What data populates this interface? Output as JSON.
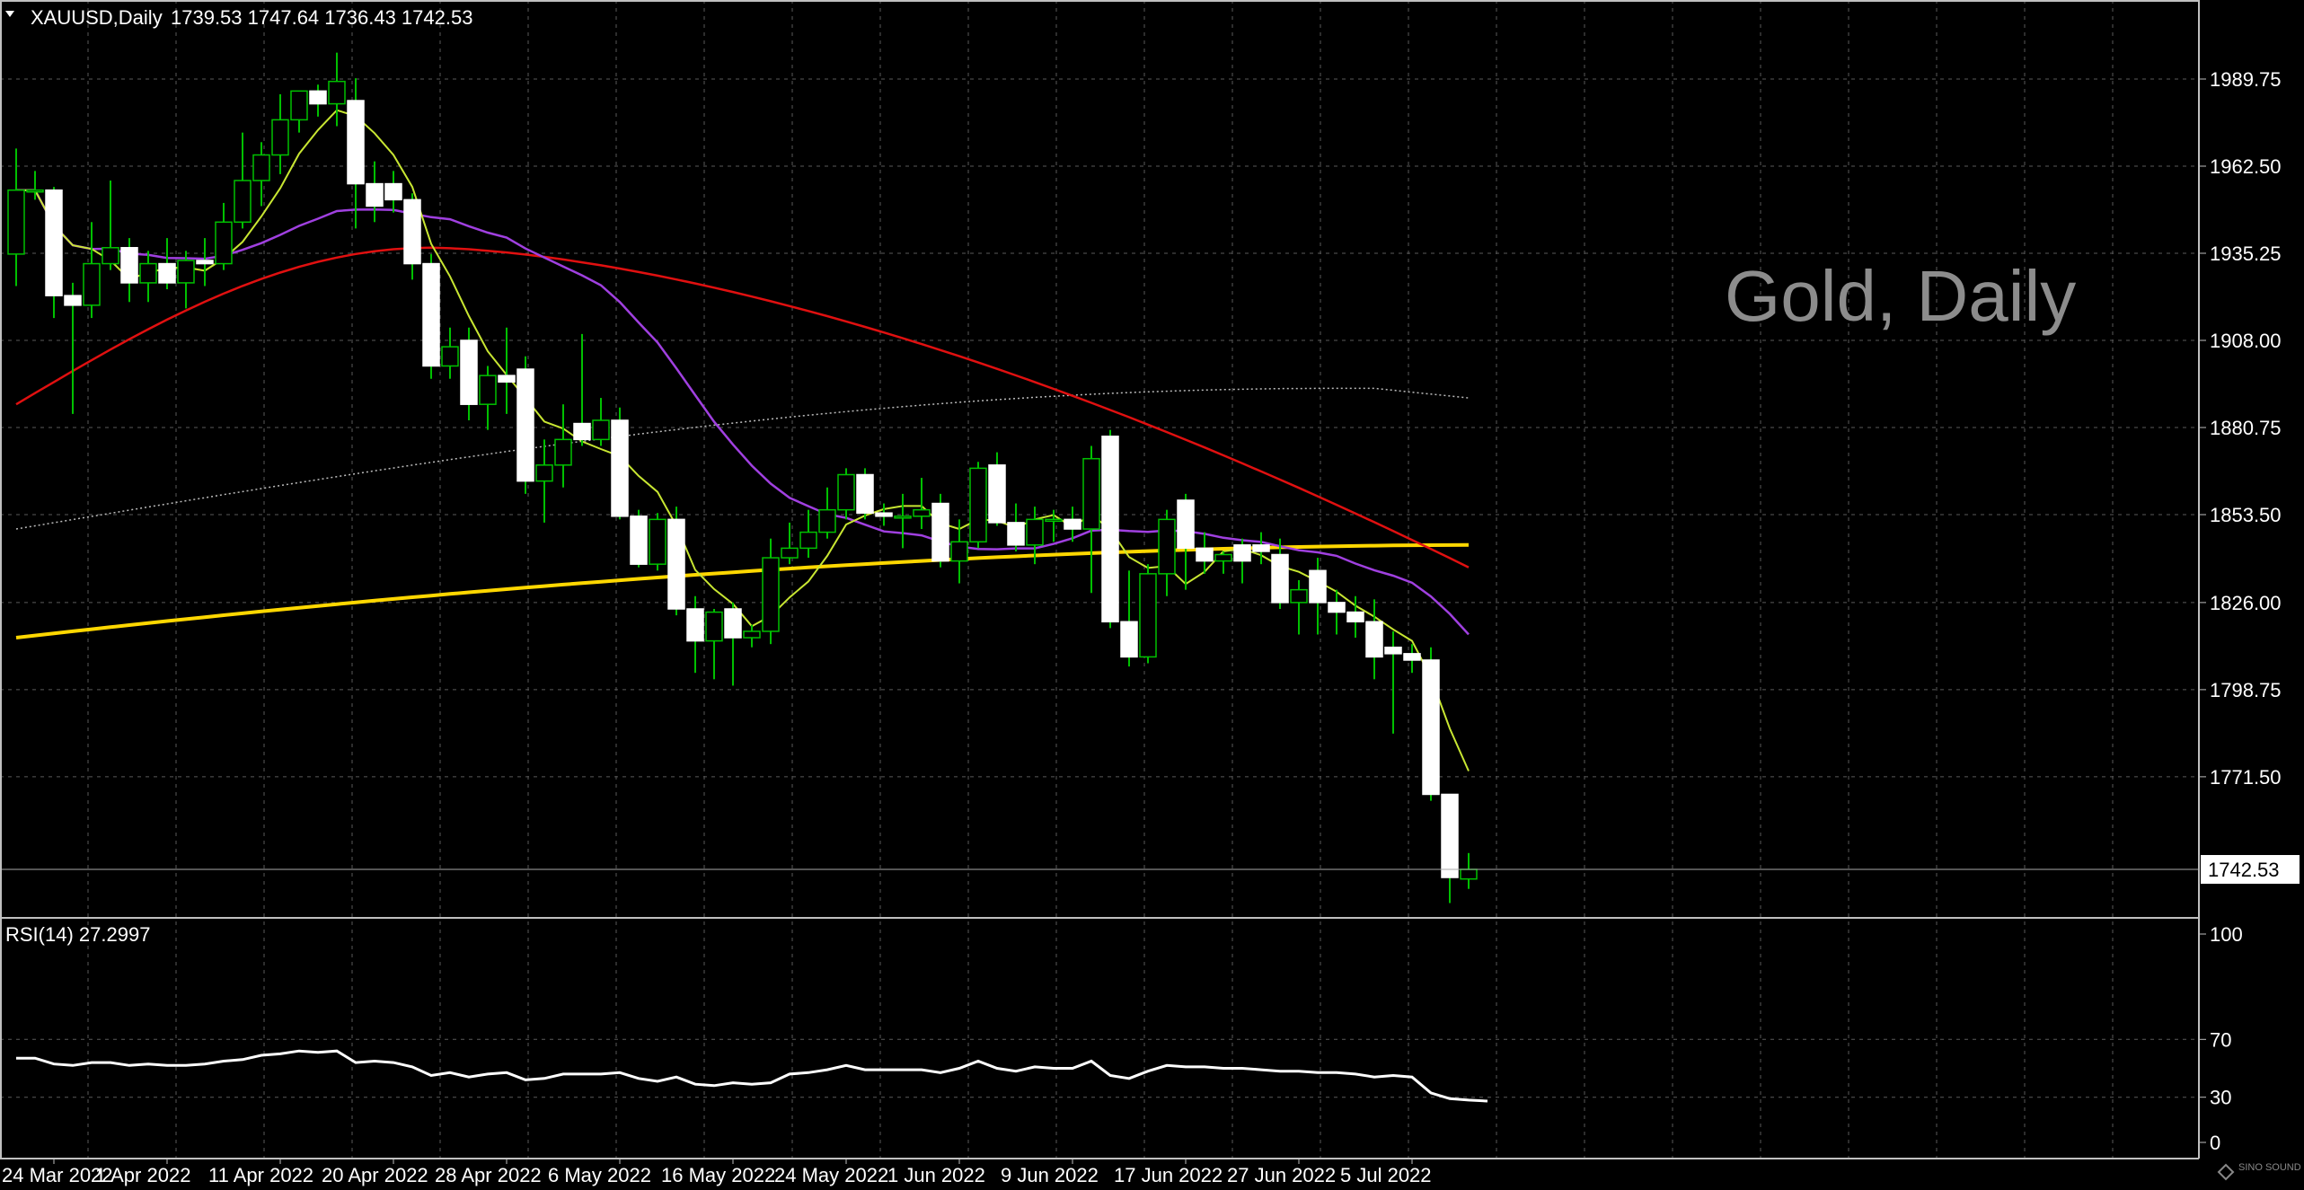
{
  "header": {
    "symbol": "XAUUSD,Daily",
    "ohlc": "1739.53 1747.64 1736.43 1742.53",
    "watermark": "Gold, Daily"
  },
  "price_panel": {
    "ticks": [
      "1989.75",
      "1962.50",
      "1935.25",
      "1908.00",
      "1880.75",
      "1853.50",
      "1826.00",
      "1798.75",
      "1771.50"
    ],
    "current_price": "1742.53"
  },
  "rsi_panel": {
    "label": "RSI(14) 27.2997",
    "ticks": [
      "100",
      "70",
      "30",
      "0"
    ]
  },
  "date_labels": [
    "24 Mar 2022",
    "1 Apr 2022",
    "11 Apr 2022",
    "20 Apr 2022",
    "28 Apr 2022",
    "6 May 2022",
    "16 May 2022",
    "24 May 2022",
    "1 Jun 2022",
    "9 Jun 2022",
    "17 Jun 2022",
    "27 Jun 2022",
    "5 Jul 2022"
  ],
  "logo": "SINO SOUND",
  "colors": {
    "background": "#000000",
    "candle_up": "#000000",
    "candle_down": "#ffffff",
    "wick": "#00c000",
    "ma_fast": "#c8e632",
    "ma_mid": "#a040e0",
    "ma_slow": "#e01010",
    "ma_200": "#ffd700",
    "ma_long_dotted": "#bbbbbb",
    "rsi": "#ffffff"
  },
  "chart_data": [
    {
      "type": "candlestick",
      "title": "XAUUSD,Daily",
      "ylim": [
        1719,
        2015
      ],
      "candles": [
        {
          "o": 1935,
          "h": 1968,
          "l": 1925,
          "c": 1955
        },
        {
          "o": 1955,
          "h": 1961,
          "l": 1952,
          "c": 1955
        },
        {
          "o": 1955,
          "h": 1956,
          "l": 1915,
          "c": 1922
        },
        {
          "o": 1922,
          "h": 1926,
          "l": 1885,
          "c": 1919
        },
        {
          "o": 1919,
          "h": 1945,
          "l": 1915,
          "c": 1932
        },
        {
          "o": 1932,
          "h": 1958,
          "l": 1930,
          "c": 1937
        },
        {
          "o": 1937,
          "h": 1940,
          "l": 1920,
          "c": 1926
        },
        {
          "o": 1926,
          "h": 1936,
          "l": 1920,
          "c": 1932
        },
        {
          "o": 1932,
          "h": 1940,
          "l": 1924,
          "c": 1926
        },
        {
          "o": 1926,
          "h": 1936,
          "l": 1918,
          "c": 1933
        },
        {
          "o": 1933,
          "h": 1940,
          "l": 1925,
          "c": 1932
        },
        {
          "o": 1932,
          "h": 1951,
          "l": 1930,
          "c": 1945
        },
        {
          "o": 1945,
          "h": 1973,
          "l": 1943,
          "c": 1958
        },
        {
          "o": 1958,
          "h": 1970,
          "l": 1950,
          "c": 1966
        },
        {
          "o": 1966,
          "h": 1985,
          "l": 1960,
          "c": 1977
        },
        {
          "o": 1977,
          "h": 1986,
          "l": 1973,
          "c": 1986
        },
        {
          "o": 1986,
          "h": 1988,
          "l": 1978,
          "c": 1982
        },
        {
          "o": 1982,
          "h": 1998,
          "l": 1975,
          "c": 1989
        },
        {
          "o": 1983,
          "h": 1990,
          "l": 1943,
          "c": 1957
        },
        {
          "o": 1957,
          "h": 1964,
          "l": 1945,
          "c": 1950
        },
        {
          "o": 1957,
          "h": 1961,
          "l": 1948,
          "c": 1952
        },
        {
          "o": 1952,
          "h": 1954,
          "l": 1927,
          "c": 1932
        },
        {
          "o": 1932,
          "h": 1935,
          "l": 1896,
          "c": 1900
        },
        {
          "o": 1900,
          "h": 1912,
          "l": 1896,
          "c": 1906
        },
        {
          "o": 1908,
          "h": 1912,
          "l": 1883,
          "c": 1888
        },
        {
          "o": 1888,
          "h": 1900,
          "l": 1880,
          "c": 1897
        },
        {
          "o": 1897,
          "h": 1912,
          "l": 1885,
          "c": 1895
        },
        {
          "o": 1899,
          "h": 1903,
          "l": 1860,
          "c": 1864
        },
        {
          "o": 1864,
          "h": 1877,
          "l": 1851,
          "c": 1869
        },
        {
          "o": 1869,
          "h": 1888,
          "l": 1862,
          "c": 1877
        },
        {
          "o": 1882,
          "h": 1910,
          "l": 1875,
          "c": 1877
        },
        {
          "o": 1877,
          "h": 1890,
          "l": 1875,
          "c": 1883
        },
        {
          "o": 1883,
          "h": 1887,
          "l": 1852,
          "c": 1853
        },
        {
          "o": 1853,
          "h": 1855,
          "l": 1837,
          "c": 1838
        },
        {
          "o": 1838,
          "h": 1854,
          "l": 1836,
          "c": 1852
        },
        {
          "o": 1852,
          "h": 1856,
          "l": 1822,
          "c": 1824
        },
        {
          "o": 1824,
          "h": 1828,
          "l": 1804,
          "c": 1814
        },
        {
          "o": 1814,
          "h": 1824,
          "l": 1802,
          "c": 1823
        },
        {
          "o": 1824,
          "h": 1826,
          "l": 1800,
          "c": 1815
        },
        {
          "o": 1815,
          "h": 1819,
          "l": 1812,
          "c": 1817
        },
        {
          "o": 1817,
          "h": 1846,
          "l": 1813,
          "c": 1840
        },
        {
          "o": 1840,
          "h": 1851,
          "l": 1838,
          "c": 1843
        },
        {
          "o": 1843,
          "h": 1855,
          "l": 1840,
          "c": 1848
        },
        {
          "o": 1848,
          "h": 1862,
          "l": 1846,
          "c": 1855
        },
        {
          "o": 1855,
          "h": 1868,
          "l": 1852,
          "c": 1866
        },
        {
          "o": 1866,
          "h": 1868,
          "l": 1852,
          "c": 1854
        },
        {
          "o": 1854,
          "h": 1857,
          "l": 1850,
          "c": 1853
        },
        {
          "o": 1853,
          "h": 1860,
          "l": 1843,
          "c": 1853
        },
        {
          "o": 1853,
          "h": 1865,
          "l": 1849,
          "c": 1855
        },
        {
          "o": 1857,
          "h": 1860,
          "l": 1837,
          "c": 1839
        },
        {
          "o": 1839,
          "h": 1852,
          "l": 1832,
          "c": 1845
        },
        {
          "o": 1845,
          "h": 1870,
          "l": 1843,
          "c": 1868
        },
        {
          "o": 1869,
          "h": 1873,
          "l": 1850,
          "c": 1851
        },
        {
          "o": 1851,
          "h": 1857,
          "l": 1842,
          "c": 1844
        },
        {
          "o": 1844,
          "h": 1856,
          "l": 1838,
          "c": 1852
        },
        {
          "o": 1852,
          "h": 1855,
          "l": 1845,
          "c": 1852
        },
        {
          "o": 1852,
          "h": 1856,
          "l": 1845,
          "c": 1849
        },
        {
          "o": 1849,
          "h": 1875,
          "l": 1829,
          "c": 1871
        },
        {
          "o": 1878,
          "h": 1880,
          "l": 1818,
          "c": 1820
        },
        {
          "o": 1820,
          "h": 1836,
          "l": 1806,
          "c": 1809
        },
        {
          "o": 1809,
          "h": 1838,
          "l": 1807,
          "c": 1835
        },
        {
          "o": 1835,
          "h": 1855,
          "l": 1828,
          "c": 1852
        },
        {
          "o": 1858,
          "h": 1860,
          "l": 1830,
          "c": 1843
        },
        {
          "o": 1843,
          "h": 1848,
          "l": 1835,
          "c": 1839
        },
        {
          "o": 1839,
          "h": 1842,
          "l": 1835,
          "c": 1841
        },
        {
          "o": 1844,
          "h": 1846,
          "l": 1832,
          "c": 1839
        },
        {
          "o": 1844,
          "h": 1848,
          "l": 1838,
          "c": 1842
        },
        {
          "o": 1841,
          "h": 1846,
          "l": 1824,
          "c": 1826
        },
        {
          "o": 1826,
          "h": 1833,
          "l": 1816,
          "c": 1830
        },
        {
          "o": 1836,
          "h": 1840,
          "l": 1816,
          "c": 1826
        },
        {
          "o": 1826,
          "h": 1830,
          "l": 1816,
          "c": 1823
        },
        {
          "o": 1823,
          "h": 1828,
          "l": 1815,
          "c": 1820
        },
        {
          "o": 1820,
          "h": 1827,
          "l": 1802,
          "c": 1809
        },
        {
          "o": 1812,
          "h": 1817,
          "l": 1785,
          "c": 1810
        },
        {
          "o": 1810,
          "h": 1813,
          "l": 1804,
          "c": 1808
        },
        {
          "o": 1808,
          "h": 1812,
          "l": 1764,
          "c": 1766
        },
        {
          "o": 1766,
          "h": 1766,
          "l": 1732,
          "c": 1740
        },
        {
          "o": 1739.53,
          "h": 1747.64,
          "l": 1736.43,
          "c": 1742.53
        }
      ]
    },
    {
      "type": "line",
      "title": "RSI(14) 27.2997",
      "ylim": [
        0,
        100
      ],
      "values": [
        57,
        57,
        53,
        52,
        54,
        54,
        52,
        53,
        52,
        52,
        53,
        55,
        56,
        59,
        60,
        62,
        61,
        62,
        54,
        55,
        54,
        51,
        45,
        47,
        44,
        46,
        47,
        42,
        43,
        46,
        46,
        46,
        47,
        43,
        41,
        44,
        39,
        38,
        40,
        39,
        40,
        46,
        47,
        49,
        52,
        49,
        49,
        49,
        49,
        47,
        50,
        55,
        50,
        48,
        51,
        50,
        50,
        55,
        45,
        43,
        48,
        52,
        51,
        51,
        50,
        50,
        49,
        48,
        48,
        47,
        47,
        46,
        44,
        45,
        44,
        33,
        29,
        28,
        27.3
      ]
    }
  ]
}
